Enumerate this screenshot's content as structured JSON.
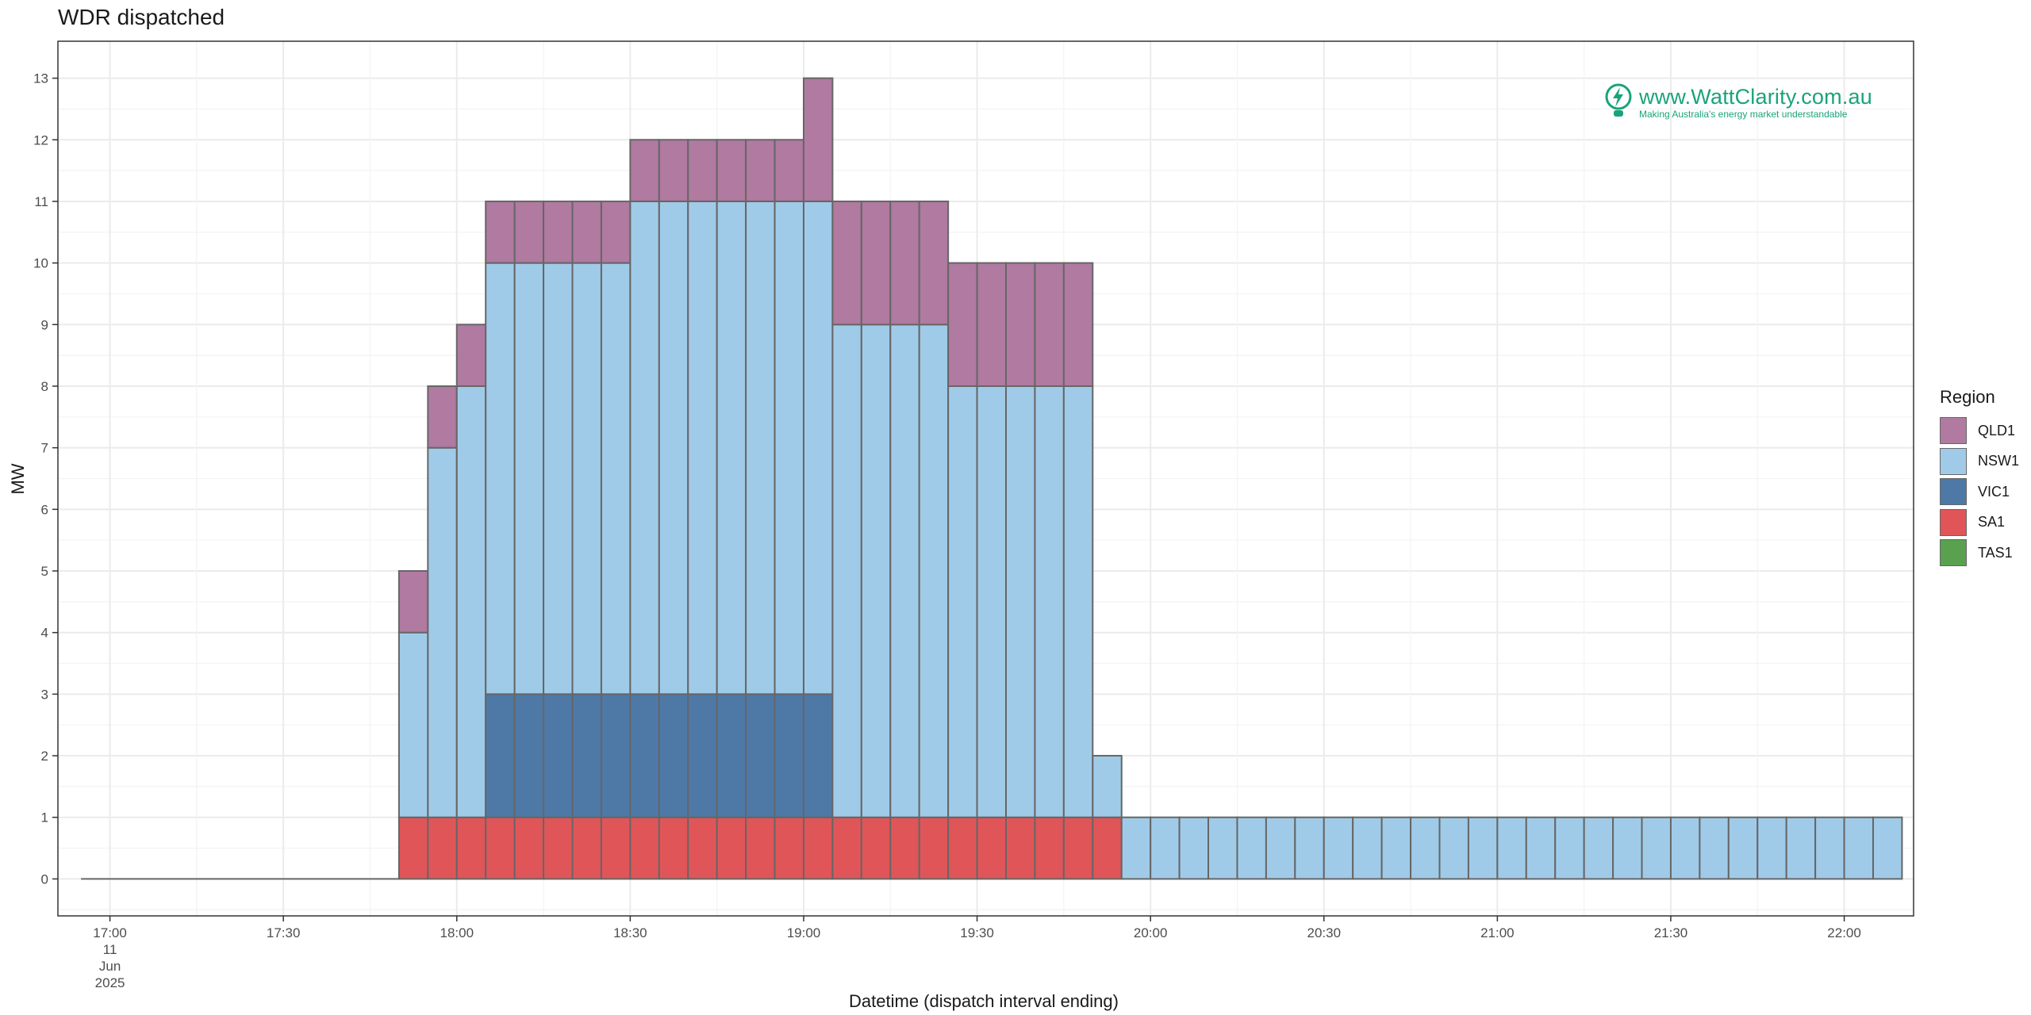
{
  "chart_data": {
    "type": "bar",
    "stacked": true,
    "title": "WDR dispatched",
    "xlabel": "Datetime (dispatch interval ending)",
    "ylabel": "MW",
    "ylim": [
      -0.6,
      13.6
    ],
    "yticks": [
      0,
      1,
      2,
      3,
      4,
      5,
      6,
      7,
      8,
      9,
      10,
      11,
      12,
      13
    ],
    "xlim": [
      "2025-06-11 16:51",
      "2025-06-11 22:12"
    ],
    "xticks": [
      {
        "time": "17:00",
        "label": "17:00",
        "date_lines": [
          "11",
          "Jun",
          "2025"
        ]
      },
      {
        "time": "17:30",
        "label": "17:30"
      },
      {
        "time": "18:00",
        "label": "18:00"
      },
      {
        "time": "18:30",
        "label": "18:30"
      },
      {
        "time": "19:00",
        "label": "19:00"
      },
      {
        "time": "19:30",
        "label": "19:30"
      },
      {
        "time": "20:00",
        "label": "20:00"
      },
      {
        "time": "20:30",
        "label": "20:30"
      },
      {
        "time": "21:00",
        "label": "21:00"
      },
      {
        "time": "21:30",
        "label": "21:30"
      },
      {
        "time": "22:00",
        "label": "22:00"
      }
    ],
    "interval_minutes": 5,
    "zero_line": {
      "from": "16:55",
      "to": "17:50",
      "value": 0
    },
    "categories": [
      "17:55",
      "18:00",
      "18:05",
      "18:10",
      "18:15",
      "18:20",
      "18:25",
      "18:30",
      "18:35",
      "18:40",
      "18:45",
      "18:50",
      "18:55",
      "19:00",
      "19:05",
      "19:10",
      "19:15",
      "19:20",
      "19:25",
      "19:30",
      "19:35",
      "19:40",
      "19:45",
      "19:50",
      "19:55",
      "20:00",
      "20:05",
      "20:10",
      "20:15",
      "20:20",
      "20:25",
      "20:30",
      "20:35",
      "20:40",
      "20:45",
      "20:50",
      "20:55",
      "21:00",
      "21:05",
      "21:10",
      "21:15",
      "21:20",
      "21:25",
      "21:30",
      "21:35",
      "21:40",
      "21:45",
      "21:50",
      "21:55",
      "22:00",
      "22:05",
      "22:10"
    ],
    "series": [
      {
        "name": "SA1",
        "color": "#e05558",
        "values": [
          1,
          1,
          1,
          1,
          1,
          1,
          1,
          1,
          1,
          1,
          1,
          1,
          1,
          1,
          1,
          1,
          1,
          1,
          1,
          1,
          1,
          1,
          1,
          1,
          1,
          0,
          0,
          0,
          0,
          0,
          0,
          0,
          0,
          0,
          0,
          0,
          0,
          0,
          0,
          0,
          0,
          0,
          0,
          0,
          0,
          0,
          0,
          0,
          0,
          0,
          0,
          0
        ]
      },
      {
        "name": "VIC1",
        "color": "#4e79a7",
        "values": [
          0,
          0,
          0,
          2,
          2,
          2,
          2,
          2,
          2,
          2,
          2,
          2,
          2,
          2,
          2,
          0,
          0,
          0,
          0,
          0,
          0,
          0,
          0,
          0,
          0,
          0,
          0,
          0,
          0,
          0,
          0,
          0,
          0,
          0,
          0,
          0,
          0,
          0,
          0,
          0,
          0,
          0,
          0,
          0,
          0,
          0,
          0,
          0,
          0,
          0,
          0,
          0
        ]
      },
      {
        "name": "NSW1",
        "color": "#a0cbe8",
        "values": [
          3,
          6,
          7,
          7,
          7,
          7,
          7,
          7,
          8,
          8,
          8,
          8,
          8,
          8,
          8,
          8,
          8,
          8,
          8,
          7,
          7,
          7,
          7,
          7,
          1,
          1,
          1,
          1,
          1,
          1,
          1,
          1,
          1,
          1,
          1,
          1,
          1,
          1,
          1,
          1,
          1,
          1,
          1,
          1,
          1,
          1,
          1,
          1,
          1,
          1,
          1,
          1
        ]
      },
      {
        "name": "QLD1",
        "color": "#b07aa1",
        "values": [
          1,
          1,
          1,
          1,
          1,
          1,
          1,
          1,
          1,
          1,
          1,
          1,
          1,
          1,
          2,
          2,
          2,
          2,
          2,
          2,
          2,
          2,
          2,
          2,
          0,
          0,
          0,
          0,
          0,
          0,
          0,
          0,
          0,
          0,
          0,
          0,
          0,
          0,
          0,
          0,
          0,
          0,
          0,
          0,
          0,
          0,
          0,
          0,
          0,
          0,
          0,
          0
        ]
      },
      {
        "name": "TAS1",
        "color": "#59a14f",
        "values": [
          0,
          0,
          0,
          0,
          0,
          0,
          0,
          0,
          0,
          0,
          0,
          0,
          0,
          0,
          0,
          0,
          0,
          0,
          0,
          0,
          0,
          0,
          0,
          0,
          0,
          0,
          0,
          0,
          0,
          0,
          0,
          0,
          0,
          0,
          0,
          0,
          0,
          0,
          0,
          0,
          0,
          0,
          0,
          0,
          0,
          0,
          0,
          0,
          0,
          0,
          0,
          0
        ]
      }
    ],
    "legend": {
      "title": "Region",
      "position": "right",
      "items": [
        {
          "name": "QLD1",
          "color": "#b07aa1"
        },
        {
          "name": "NSW1",
          "color": "#a0cbe8"
        },
        {
          "name": "VIC1",
          "color": "#4e79a7"
        },
        {
          "name": "SA1",
          "color": "#e05558"
        },
        {
          "name": "TAS1",
          "color": "#59a14f"
        }
      ]
    },
    "grid": true
  },
  "watermark": {
    "site": "www.WattClarity.com.au",
    "tagline": "Making Australia's energy market understandable",
    "color": "#1aa37a",
    "icon": "lightbulb-bolt-icon"
  }
}
